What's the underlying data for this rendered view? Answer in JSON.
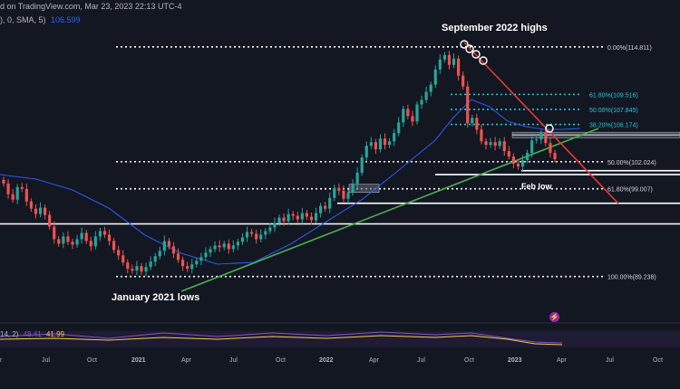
{
  "header": {
    "line1": "d on TradingView.com, Mar 23, 2023 22:13 UTC-4",
    "sma_prefix": "), 0, SMA, 5)",
    "sma_value": "106.599"
  },
  "annotations": {
    "sept_highs": "September 2022 highs",
    "jan_lows": "January 2021 lows",
    "feb_low": "Feb low"
  },
  "fib_labels": [
    {
      "text": "0.00%(114.811)",
      "price": 114.811,
      "color": "#d1d4dc",
      "emphasis": true
    },
    {
      "text": "61.80%(109.516)",
      "price": 109.516,
      "color": "#26c6da",
      "emphasis": false
    },
    {
      "text": "50.00%(107.845)",
      "price": 107.845,
      "color": "#26c6da",
      "emphasis": false
    },
    {
      "text": "38.20%(106.174)",
      "price": 106.174,
      "color": "#26c6da",
      "emphasis": false
    },
    {
      "text": "50.00%(102.024)",
      "price": 102.024,
      "color": "#d1d4dc",
      "emphasis": true
    },
    {
      "text": "61.80%(99.007)",
      "price": 99.007,
      "color": "#d1d4dc",
      "emphasis": true
    },
    {
      "text": "100.00%(89.238)",
      "price": 89.238,
      "color": "#d1d4dc",
      "emphasis": true
    }
  ],
  "rsi": {
    "prefix": "14, 2)",
    "value1": "48.41",
    "value2": "41.99"
  },
  "x_axis": {
    "ticks": [
      "r",
      "Jul",
      "Oct",
      "2021",
      "Apr",
      "Jul",
      "Oct",
      "2022",
      "Apr",
      "Jul",
      "Oct",
      "2023",
      "Apr",
      "Jul",
      "Oct"
    ]
  },
  "chart_data": {
    "type": "candlestick",
    "title": "",
    "x_range": [
      "2020-03",
      "2023-12"
    ],
    "y_range": [
      86,
      117
    ],
    "series": [
      {
        "name": "Weekly closes (approx.)",
        "values": [
          99.6,
          98.4,
          97.8,
          99.2,
          99.0,
          97.6,
          96.8,
          96.2,
          96.9,
          96.1,
          94.8,
          93.4,
          92.9,
          93.7,
          93.1,
          92.8,
          93.4,
          94.1,
          93.2,
          92.6,
          93.7,
          94.3,
          93.9,
          93.2,
          92.2,
          91.6,
          90.8,
          90.1,
          89.9,
          90.4,
          89.8,
          90.3,
          90.9,
          91.5,
          92.1,
          93.2,
          92.6,
          91.8,
          91.1,
          90.4,
          90.1,
          90.6,
          91.0,
          91.4,
          91.9,
          92.3,
          92.7,
          92.5,
          92.9,
          92.3,
          92.7,
          93.1,
          93.6,
          94.2,
          94.0,
          93.4,
          93.9,
          94.3,
          94.7,
          95.2,
          95.8,
          95.4,
          96.2,
          96.0,
          95.6,
          96.3,
          95.9,
          95.5,
          96.3,
          97.1,
          96.8,
          98.0,
          99.1,
          98.8,
          97.9,
          98.6,
          99.6,
          100.8,
          102.5,
          103.8,
          104.2,
          103.4,
          104.6,
          103.9,
          104.3,
          105.2,
          106.4,
          107.9,
          107.1,
          106.5,
          108.4,
          108.9,
          109.8,
          110.6,
          112.3,
          113.4,
          113.9,
          112.8,
          113.5,
          111.6,
          110.4,
          106.3,
          106.9,
          105.6,
          104.3,
          103.9,
          104.2,
          103.8,
          104.3,
          103.2,
          102.6,
          101.8,
          101.5,
          102.2,
          103.0,
          104.4,
          104.5,
          105.2,
          104.1,
          103.0,
          102.3
        ]
      },
      {
        "name": "SMA (blue)"
      },
      {
        "name": "Trendline (green)"
      },
      {
        "name": "Trendline (red)"
      }
    ],
    "horizontal_levels": [
      114.811,
      109.516,
      107.845,
      106.174,
      105.0,
      102.024,
      100.6,
      99.007,
      97.4,
      95.1,
      89.238
    ],
    "rsi_values": {
      "rsi": 48.41,
      "signal": 41.99
    },
    "grid": false,
    "legend": "none"
  }
}
